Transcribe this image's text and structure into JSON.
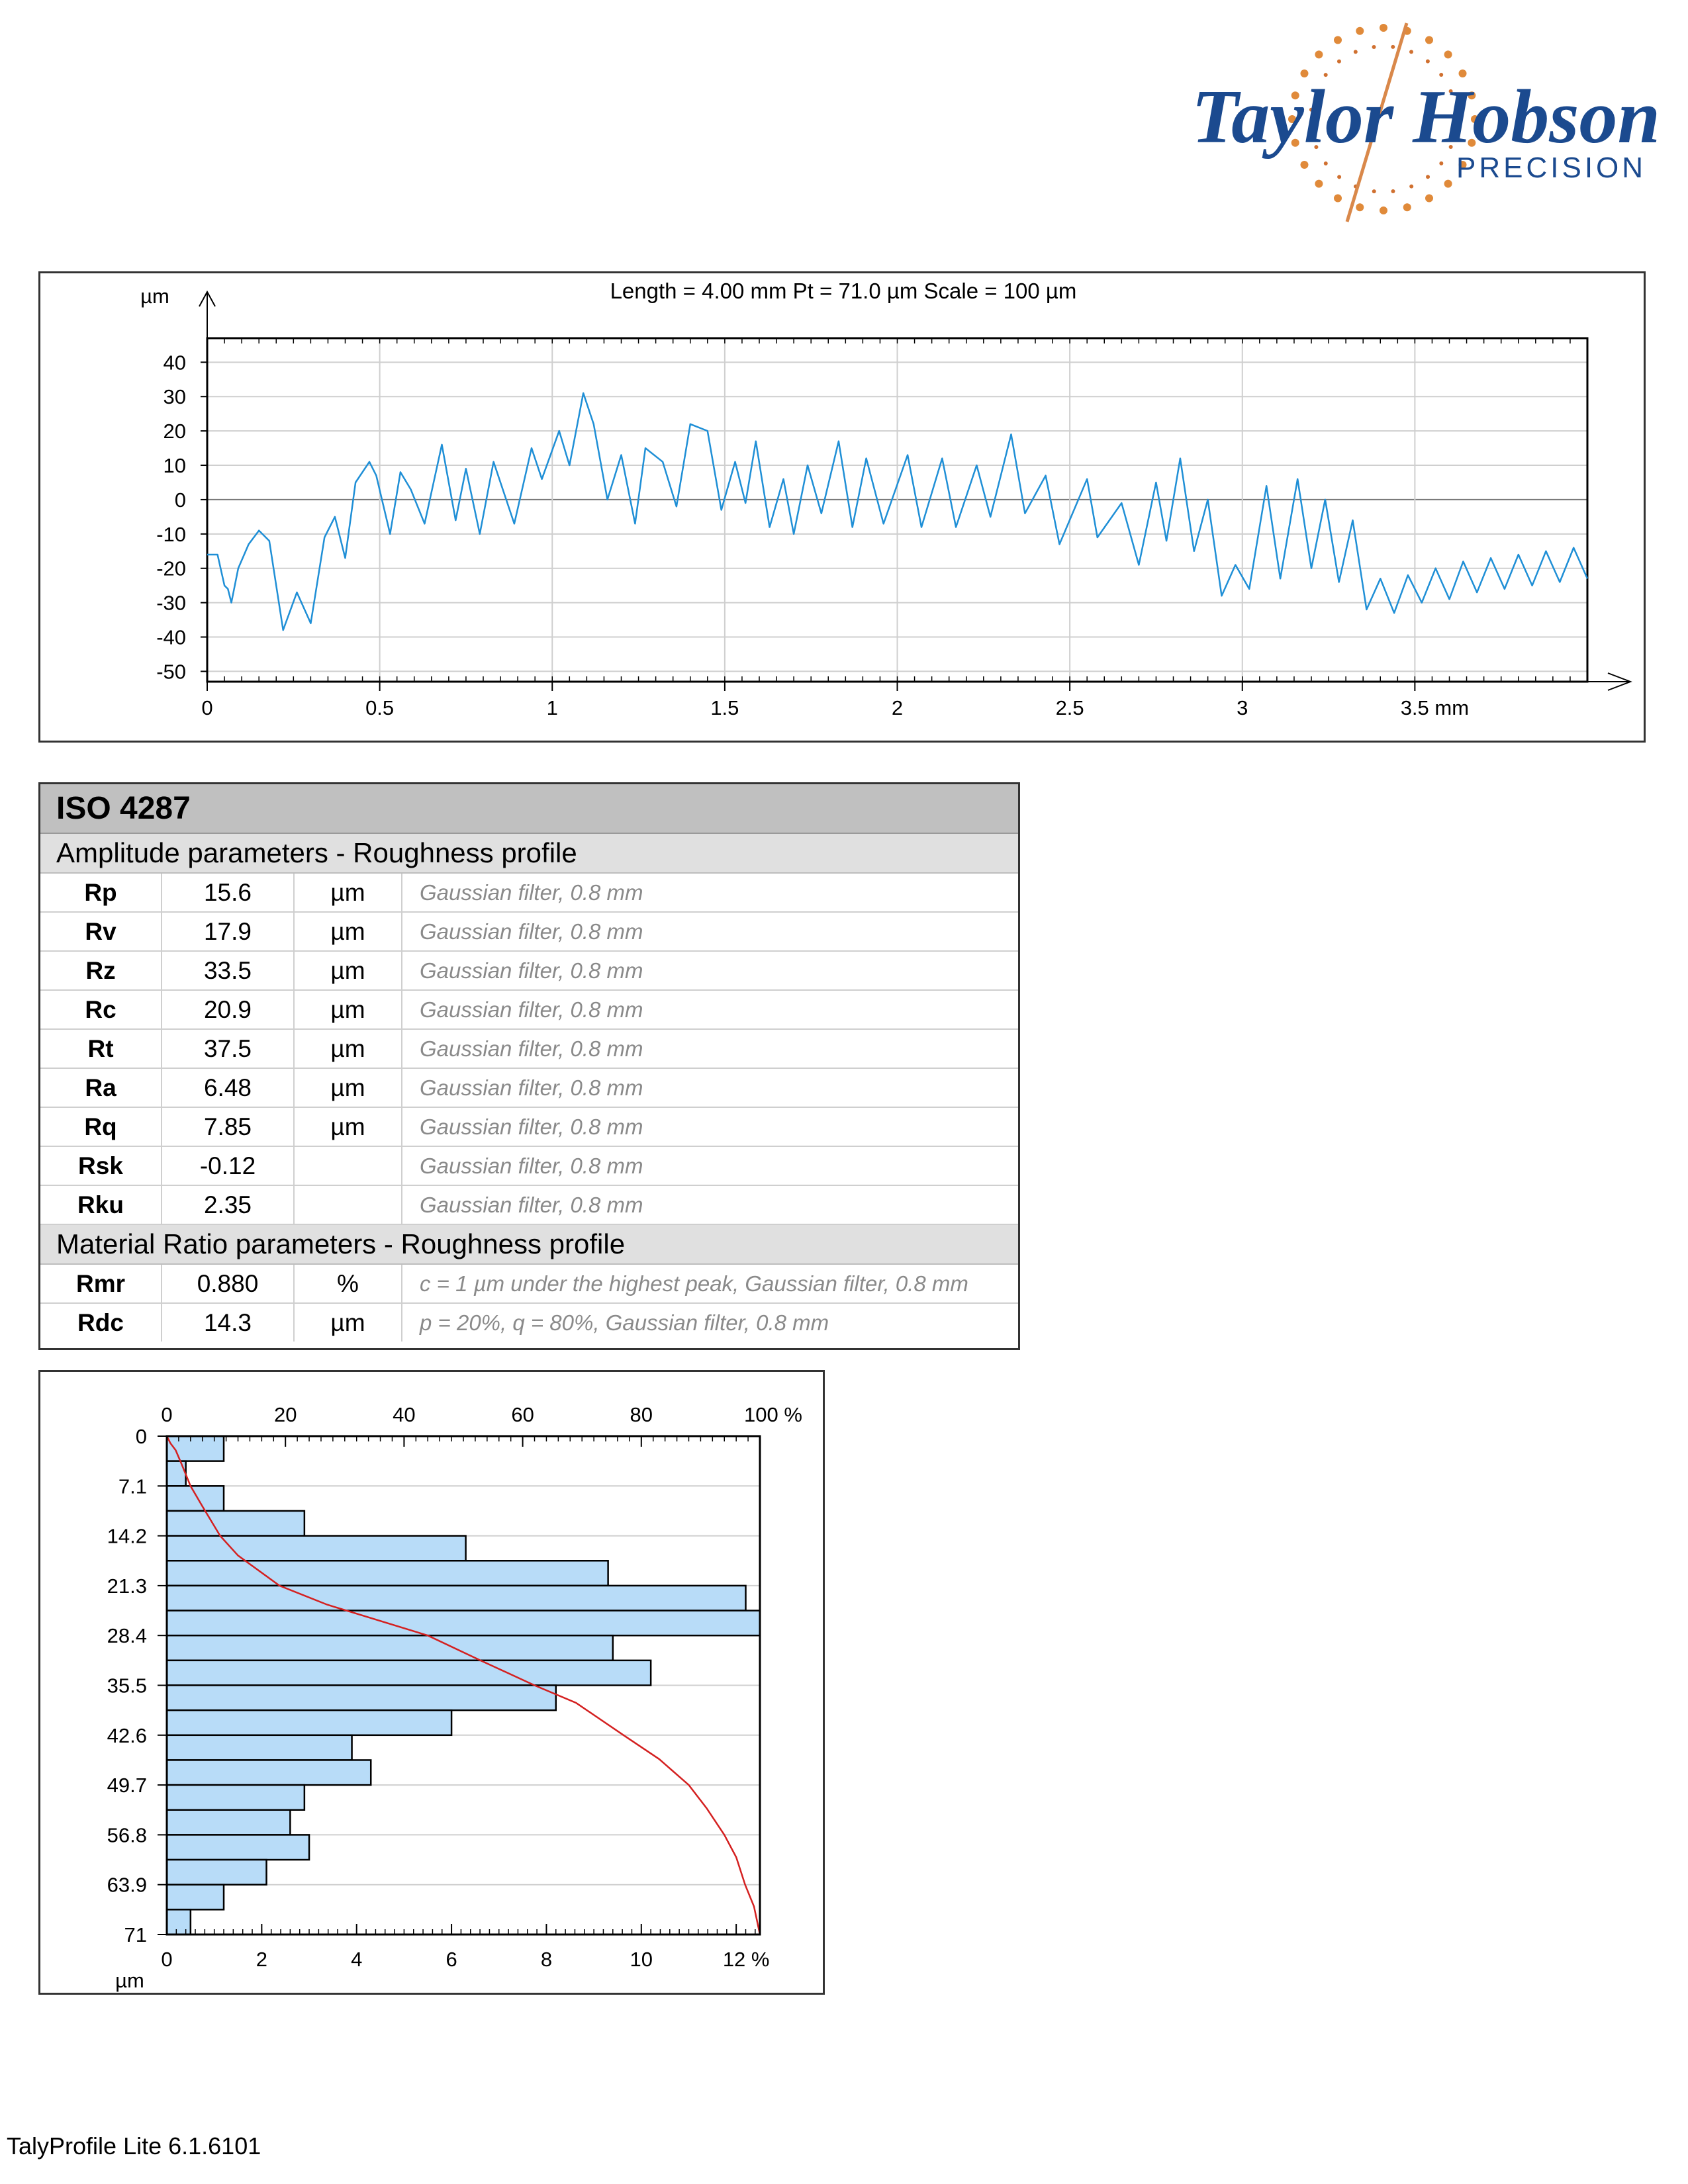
{
  "logo": {
    "brand": "Taylor Hobson",
    "sub": "PRECISION"
  },
  "profile": {
    "header": "Length = 4.00 mm  Pt = 71.0 µm  Scale = 100 µm",
    "y_unit": "µm",
    "y_ticks": [
      "40",
      "30",
      "20",
      "10",
      "0",
      "-10",
      "-20",
      "-30",
      "-40",
      "-50"
    ],
    "x_ticks": [
      "0",
      "0.5",
      "1",
      "1.5",
      "2",
      "2.5",
      "3",
      "3.5 mm"
    ]
  },
  "chart_data": [
    {
      "type": "line",
      "title": "Length = 4.00 mm  Pt = 71.0 µm  Scale = 100 µm",
      "xlabel": "mm",
      "ylabel": "µm",
      "xlim": [
        0,
        4.0
      ],
      "ylim": [
        -53,
        47
      ],
      "grid": true,
      "series": [
        {
          "color": "#1f8fd6",
          "x": [
            0,
            0.03,
            0.05,
            0.06,
            0.07,
            0.09,
            0.12,
            0.15,
            0.18,
            0.22,
            0.26,
            0.3,
            0.34,
            0.37,
            0.4,
            0.43,
            0.47,
            0.49,
            0.53,
            0.56,
            0.59,
            0.63,
            0.68,
            0.72,
            0.75,
            0.79,
            0.83,
            0.89,
            0.94,
            0.97,
            1.02,
            1.05,
            1.09,
            1.12,
            1.16,
            1.2,
            1.24,
            1.27,
            1.32,
            1.36,
            1.4,
            1.45,
            1.49,
            1.53,
            1.56,
            1.59,
            1.63,
            1.67,
            1.7,
            1.74,
            1.78,
            1.83,
            1.87,
            1.91,
            1.96,
            2.03,
            2.07,
            2.13,
            2.17,
            2.23,
            2.27,
            2.33,
            2.37,
            2.43,
            2.47,
            2.55,
            2.58,
            2.65,
            2.7,
            2.75,
            2.78,
            2.82,
            2.86,
            2.9,
            2.94,
            2.98,
            3.02,
            3.07,
            3.11,
            3.16,
            3.2,
            3.24,
            3.28,
            3.32,
            3.36,
            3.4,
            3.44,
            3.48,
            3.52,
            3.56,
            3.6,
            3.64,
            3.68,
            3.72,
            3.76,
            3.8,
            3.84,
            3.88,
            3.92,
            3.96,
            4.0
          ],
          "y": [
            -16,
            -16,
            -25,
            -26,
            -30,
            -20,
            -13,
            -9,
            -12,
            -38,
            -27,
            -36,
            -11,
            -5,
            -17,
            5,
            11,
            7,
            -10,
            8,
            3,
            -7,
            16,
            -6,
            9,
            -10,
            11,
            -7,
            15,
            6,
            20,
            10,
            31,
            22,
            0,
            13,
            -7,
            15,
            11,
            -2,
            22,
            20,
            -3,
            11,
            -1,
            17,
            -8,
            6,
            -10,
            10,
            -4,
            17,
            -8,
            12,
            -7,
            13,
            -8,
            12,
            -8,
            10,
            -5,
            19,
            -4,
            7,
            -13,
            6,
            -11,
            -1,
            -19,
            5,
            -12,
            12,
            -15,
            0,
            -28,
            -19,
            -26,
            4,
            -23,
            6,
            -20,
            0,
            -24,
            -6,
            -32,
            -23,
            -33,
            -22,
            -30,
            -20,
            -29,
            -18,
            -27,
            -17,
            -26,
            -16,
            -25,
            -15,
            -24,
            -14,
            -23
          ]
        }
      ]
    },
    {
      "type": "bar",
      "subtype": "histogram-with-material-ratio-curve",
      "xlabel": "%",
      "ylabel": "µm",
      "xlim": [
        0,
        12.5
      ],
      "x2lim": [
        0,
        100
      ],
      "ylim": [
        0,
        71
      ],
      "categories_depth": [
        0,
        3.55,
        7.1,
        10.65,
        14.2,
        17.75,
        21.3,
        24.85,
        28.4,
        31.95,
        35.5,
        39.05,
        42.6,
        46.15,
        49.7,
        53.25,
        56.8,
        60.35,
        63.9,
        67.45
      ],
      "values": [
        1.2,
        0.4,
        1.2,
        2.9,
        6.3,
        9.3,
        12.2,
        12.5,
        9.4,
        10.2,
        8.2,
        6.0,
        3.9,
        4.3,
        2.9,
        2.6,
        3.0,
        2.1,
        1.2,
        0.5
      ],
      "material_ratio_curve": {
        "color": "#d42020",
        "depth": [
          0,
          1,
          2,
          4,
          7.1,
          10,
          14.2,
          17,
          21.3,
          24,
          28.4,
          32,
          35.5,
          38,
          42.6,
          46,
          49.7,
          53,
          56.8,
          60,
          63.9,
          67,
          71
        ],
        "percent": [
          0,
          0.6,
          1.5,
          2.5,
          4,
          6,
          9,
          12,
          19,
          27,
          44,
          53,
          62,
          69,
          77,
          83,
          88,
          91,
          94,
          96,
          97.5,
          99,
          100
        ]
      }
    }
  ],
  "iso": {
    "title": "ISO 4287",
    "amplitude_section": "Amplitude parameters - Roughness profile",
    "amplitude": [
      {
        "name": "Rp",
        "value": "15.6",
        "unit": "µm",
        "note": "Gaussian filter, 0.8 mm"
      },
      {
        "name": "Rv",
        "value": "17.9",
        "unit": "µm",
        "note": "Gaussian filter, 0.8 mm"
      },
      {
        "name": "Rz",
        "value": "33.5",
        "unit": "µm",
        "note": "Gaussian filter, 0.8 mm"
      },
      {
        "name": "Rc",
        "value": "20.9",
        "unit": "µm",
        "note": "Gaussian filter, 0.8 mm"
      },
      {
        "name": "Rt",
        "value": "37.5",
        "unit": "µm",
        "note": "Gaussian filter, 0.8 mm"
      },
      {
        "name": "Ra",
        "value": "6.48",
        "unit": "µm",
        "note": "Gaussian filter, 0.8 mm"
      },
      {
        "name": "Rq",
        "value": "7.85",
        "unit": "µm",
        "note": "Gaussian filter, 0.8 mm"
      },
      {
        "name": "Rsk",
        "value": "-0.12",
        "unit": "",
        "note": "Gaussian filter, 0.8 mm"
      },
      {
        "name": "Rku",
        "value": "2.35",
        "unit": "",
        "note": "Gaussian filter, 0.8 mm"
      }
    ],
    "material_section": "Material Ratio parameters - Roughness profile",
    "material": [
      {
        "name": "Rmr",
        "value": "0.880",
        "unit": "%",
        "note": "c = 1 µm under the highest peak, Gaussian filter, 0.8 mm"
      },
      {
        "name": "Rdc",
        "value": "14.3",
        "unit": "µm",
        "note": "p = 20%, q = 80%, Gaussian filter, 0.8 mm"
      }
    ]
  },
  "histogram": {
    "y_unit": "µm",
    "y_ticks": [
      "0",
      "7.1",
      "14.2",
      "21.3",
      "28.4",
      "35.5",
      "42.6",
      "49.7",
      "56.8",
      "63.9",
      "71"
    ],
    "x_ticks_bottom": [
      "0",
      "2",
      "4",
      "6",
      "8",
      "10",
      "12 %"
    ],
    "x_ticks_top": [
      "0",
      "20",
      "40",
      "60",
      "80",
      "100 %"
    ],
    "bar_fill": "#b8dcf8",
    "curve_color": "#d42020"
  },
  "footer": "TalyProfile Lite 6.1.6101"
}
